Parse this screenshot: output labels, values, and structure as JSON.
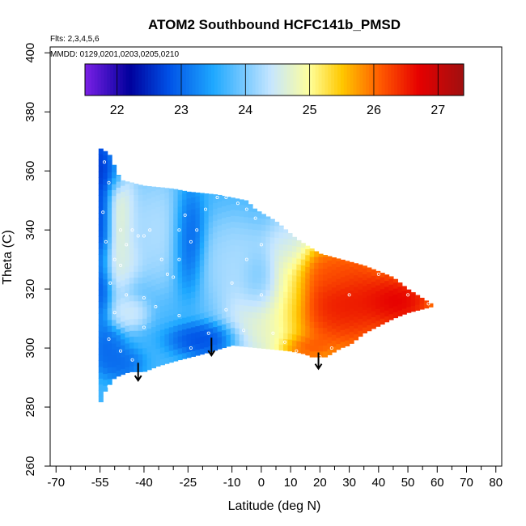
{
  "chart_data": {
    "type": "heatmap",
    "title": "ATOM2 Southbound HCFC141b_PMSD",
    "subtitle_flights": "Flts: 2,3,4,5,6",
    "subtitle_dates": "MMDD: 0129,0201,0203,0205,0210",
    "xlabel": "Latitude (deg N)",
    "ylabel": "Theta (C)",
    "xlim": [
      -72,
      82
    ],
    "ylim": [
      260,
      402
    ],
    "x_ticks": [
      -70,
      -55,
      -40,
      -25,
      -10,
      0,
      10,
      20,
      30,
      40,
      50,
      60,
      70,
      80
    ],
    "x_minor_ticks": [
      -65,
      -60,
      -50,
      -45,
      -35,
      -30,
      -20,
      -15,
      -5,
      5,
      15,
      25,
      35,
      45,
      55,
      65,
      75
    ],
    "y_ticks": [
      260,
      280,
      300,
      320,
      340,
      360,
      380,
      400
    ],
    "colorbar": {
      "range": [
        21.5,
        27.4
      ],
      "ticks": [
        22,
        23,
        24,
        25,
        26,
        27
      ],
      "colors": [
        "#7b20e6",
        "#00009c",
        "#0050e6",
        "#1ea8ff",
        "#c6e6ff",
        "#ffff9a",
        "#ffc800",
        "#ff5a00",
        "#e60000",
        "#a01010"
      ],
      "stops": [
        21.5,
        22.2,
        22.8,
        23.5,
        24.4,
        25.0,
        25.5,
        26.1,
        26.7,
        27.4
      ]
    },
    "field": {
      "lat_min": -55.5,
      "lat_max": 58,
      "lat_step": 1.5,
      "theta_step": 2,
      "background_value": 23.7,
      "top_edge": [
        [
          -55.5,
          368
        ],
        [
          -52,
          366
        ],
        [
          -48,
          357
        ],
        [
          -40,
          355
        ],
        [
          -30,
          354
        ],
        [
          -25,
          353
        ],
        [
          -15,
          352
        ],
        [
          -5,
          350
        ],
        [
          -2,
          347
        ],
        [
          5,
          343
        ],
        [
          12,
          337
        ],
        [
          20,
          332
        ],
        [
          35,
          328
        ],
        [
          45,
          324
        ],
        [
          50,
          320
        ],
        [
          58,
          315
        ]
      ],
      "bottom_edge": [
        [
          -55.5,
          280
        ],
        [
          -53,
          286
        ],
        [
          -50,
          290
        ],
        [
          -45,
          292
        ],
        [
          -40,
          292
        ],
        [
          -35,
          294
        ],
        [
          -28,
          296
        ],
        [
          -20,
          298
        ],
        [
          -10,
          301
        ],
        [
          0,
          300
        ],
        [
          10,
          299
        ],
        [
          15,
          298
        ],
        [
          17,
          297
        ],
        [
          22,
          297
        ],
        [
          27,
          300
        ],
        [
          30,
          301
        ],
        [
          35,
          305
        ],
        [
          45,
          310
        ],
        [
          50,
          312
        ],
        [
          58,
          314
        ]
      ],
      "features": [
        {
          "lat": -54,
          "theta": 345,
          "value": 22.1,
          "sx": 2.0,
          "sy": 18
        },
        {
          "lat": -52,
          "theta": 360,
          "value": 22.4,
          "sx": 3.0,
          "sy": 4
        },
        {
          "lat": -49,
          "theta": 344,
          "value": 24.9,
          "sx": 3.5,
          "sy": 14
        },
        {
          "lat": -48,
          "theta": 330,
          "value": 24.6,
          "sx": 4.0,
          "sy": 4
        },
        {
          "lat": -45,
          "theta": 312,
          "value": 24.6,
          "sx": 3.5,
          "sy": 3
        },
        {
          "lat": -52,
          "theta": 300,
          "value": 22.9,
          "sx": 3.0,
          "sy": 4
        },
        {
          "lat": -48,
          "theta": 295,
          "value": 22.9,
          "sx": 4.0,
          "sy": 3
        },
        {
          "lat": -35,
          "theta": 340,
          "value": 24.4,
          "sx": 6.0,
          "sy": 10
        },
        {
          "lat": -25,
          "theta": 338,
          "value": 22.6,
          "sx": 3.0,
          "sy": 9
        },
        {
          "lat": -20,
          "theta": 303,
          "value": 22.6,
          "sx": 6.0,
          "sy": 3
        },
        {
          "lat": -10,
          "theta": 330,
          "value": 24.3,
          "sx": 6.0,
          "sy": 8
        },
        {
          "lat": 0,
          "theta": 322,
          "value": 23.5,
          "sx": 4.0,
          "sy": 6
        },
        {
          "lat": 2,
          "theta": 310,
          "value": 24.7,
          "sx": 7.0,
          "sy": 9
        },
        {
          "lat": 10,
          "theta": 330,
          "value": 24.4,
          "sx": 4.0,
          "sy": 10
        },
        {
          "lat": 28,
          "theta": 316,
          "value": 27.2,
          "sx": 15.0,
          "sy": 12
        },
        {
          "lat": 48,
          "theta": 316,
          "value": 27.2,
          "sx": 7.0,
          "sy": 5
        },
        {
          "lat": 15,
          "theta": 300,
          "value": 26.4,
          "sx": 5.0,
          "sy": 2.5
        },
        {
          "lat": 22,
          "theta": 325,
          "value": 26.1,
          "sx": 7.0,
          "sy": 4
        }
      ]
    },
    "arrows": [
      {
        "lat": -42,
        "theta_top": 295,
        "theta_bottom": 289
      },
      {
        "lat": -17,
        "theta_top": 303.5,
        "theta_bottom": 297.5
      },
      {
        "lat": 19.5,
        "theta_top": 298.5,
        "theta_bottom": 293
      }
    ],
    "sample_points": [
      [
        -53.5,
        363
      ],
      [
        -52,
        356
      ],
      [
        -54,
        346
      ],
      [
        -53,
        336
      ],
      [
        -51.5,
        322
      ],
      [
        -50,
        330
      ],
      [
        -48,
        340
      ],
      [
        -46,
        335
      ],
      [
        -44,
        340
      ],
      [
        -42,
        338
      ],
      [
        -40,
        338
      ],
      [
        -38,
        340
      ],
      [
        -34,
        330
      ],
      [
        -32,
        325
      ],
      [
        -30,
        324
      ],
      [
        -28,
        340
      ],
      [
        -26,
        345
      ],
      [
        -24,
        336
      ],
      [
        -22,
        340
      ],
      [
        -19,
        347
      ],
      [
        -15,
        351
      ],
      [
        -12,
        351
      ],
      [
        -8,
        349
      ],
      [
        -5,
        347
      ],
      [
        -2,
        344
      ],
      [
        0,
        335
      ],
      [
        -5,
        330
      ],
      [
        -48,
        328
      ],
      [
        -46,
        318
      ],
      [
        -50,
        312
      ],
      [
        -52,
        303
      ],
      [
        -48,
        299
      ],
      [
        -44,
        296
      ],
      [
        -40,
        307
      ],
      [
        -36,
        314
      ],
      [
        -28,
        311
      ],
      [
        -24,
        300
      ],
      [
        -18,
        305
      ],
      [
        -12,
        313
      ],
      [
        -6,
        306
      ],
      [
        0,
        318
      ],
      [
        4,
        305
      ],
      [
        8,
        302
      ],
      [
        12,
        299
      ],
      [
        15,
        297
      ],
      [
        20,
        297
      ],
      [
        24,
        300
      ],
      [
        30,
        318
      ],
      [
        40,
        325
      ],
      [
        50,
        318
      ],
      [
        57,
        315
      ],
      [
        -52,
        287
      ],
      [
        -40,
        317
      ],
      [
        -28,
        330
      ],
      [
        -10,
        322
      ]
    ]
  }
}
